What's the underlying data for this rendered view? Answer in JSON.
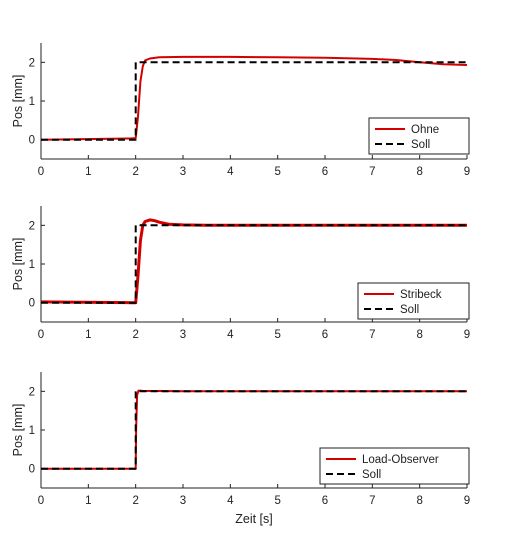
{
  "chart_data": [
    {
      "type": "line",
      "xlabel": "",
      "ylabel": "Pos [mm]",
      "xlim": [
        0,
        9
      ],
      "ylim": [
        -0.5,
        2.5
      ],
      "xticks": [
        0,
        1,
        2,
        3,
        4,
        5,
        6,
        7,
        8,
        9
      ],
      "yticks": [
        0,
        1,
        2
      ],
      "grid": false,
      "legend_position": "bottom-right",
      "series": [
        {
          "name": "Ohne",
          "color": "#d40000",
          "style": "solid",
          "x": [
            0,
            1.9,
            2.0,
            2.05,
            2.1,
            2.15,
            2.2,
            2.3,
            2.5,
            3,
            4,
            5,
            6,
            7,
            7.5,
            8,
            8.5,
            9
          ],
          "y": [
            0,
            0.03,
            0.04,
            0.6,
            1.5,
            1.9,
            2.05,
            2.1,
            2.13,
            2.14,
            2.14,
            2.13,
            2.12,
            2.09,
            2.06,
            2.0,
            1.95,
            1.93
          ]
        },
        {
          "name": "Soll",
          "color": "#000000",
          "style": "dashed",
          "x": [
            0,
            2.0,
            2.0,
            9
          ],
          "y": [
            0,
            0,
            2,
            2
          ]
        }
      ]
    },
    {
      "type": "line",
      "xlabel": "",
      "ylabel": "Pos [mm]",
      "xlim": [
        0,
        9
      ],
      "ylim": [
        -0.5,
        2.5
      ],
      "xticks": [
        0,
        1,
        2,
        3,
        4,
        5,
        6,
        7,
        8,
        9
      ],
      "yticks": [
        0,
        1,
        2
      ],
      "grid": false,
      "legend_position": "bottom-right",
      "series": [
        {
          "name": "Stribeck",
          "color": "#d40000",
          "style": "solid",
          "x": [
            0,
            1.9,
            2.0,
            2.05,
            2.1,
            2.15,
            2.2,
            2.3,
            2.4,
            2.5,
            2.7,
            3.0,
            3.5,
            4,
            5,
            6,
            7,
            8,
            9
          ],
          "y": [
            0.02,
            0.0,
            0.0,
            0.7,
            1.6,
            2.0,
            2.1,
            2.14,
            2.12,
            2.08,
            2.03,
            2.01,
            2.0,
            2.0,
            2.0,
            2.0,
            2.0,
            2.0,
            2.0
          ]
        },
        {
          "name": "Soll",
          "color": "#000000",
          "style": "dashed",
          "x": [
            0,
            2.0,
            2.0,
            9
          ],
          "y": [
            0,
            0,
            2,
            2
          ]
        }
      ]
    },
    {
      "type": "line",
      "xlabel": "Zeit [s]",
      "ylabel": "Pos [mm]",
      "xlim": [
        0,
        9
      ],
      "ylim": [
        -0.5,
        2.5
      ],
      "xticks": [
        0,
        1,
        2,
        3,
        4,
        5,
        6,
        7,
        8,
        9
      ],
      "yticks": [
        0,
        1,
        2
      ],
      "grid": false,
      "legend_position": "bottom-right",
      "series": [
        {
          "name": "Load-Observer",
          "color": "#d40000",
          "style": "solid",
          "x": [
            0,
            2.0,
            2.01,
            2.03,
            2.06,
            2.15,
            3,
            4,
            5,
            6,
            7,
            8,
            9
          ],
          "y": [
            0,
            0,
            1.0,
            1.9,
            2.02,
            2.01,
            2.0,
            2.0,
            2.0,
            2.0,
            2.0,
            2.0,
            2.0
          ]
        },
        {
          "name": "Soll",
          "color": "#000000",
          "style": "dashed",
          "x": [
            0,
            2.0,
            2.0,
            9
          ],
          "y": [
            0,
            0,
            2,
            2
          ]
        }
      ]
    }
  ]
}
